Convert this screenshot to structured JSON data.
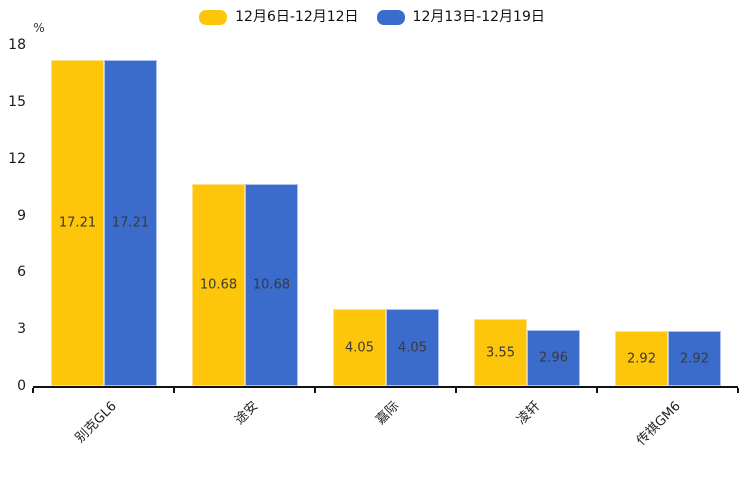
{
  "chart_data": {
    "type": "bar",
    "title": "",
    "xlabel": "",
    "ylabel": "%",
    "ylim": [
      0,
      18
    ],
    "yticks": [
      0,
      3,
      6,
      9,
      12,
      15,
      18
    ],
    "grid": false,
    "legend_position": "top-center",
    "categories": [
      "别克GL6",
      "途安",
      "嘉际",
      "凌轩",
      "传祺GM6"
    ],
    "series": [
      {
        "name": "12月6日-12月12日",
        "color": "#FDC60A",
        "border_color": "#FEE187",
        "values": [
          17.21,
          10.68,
          4.05,
          3.55,
          2.92
        ]
      },
      {
        "name": "12月13日-12月19日",
        "color": "#3B6BCB",
        "border_color": "#A9C3EE",
        "values": [
          17.21,
          10.68,
          4.05,
          2.96,
          2.92
        ]
      }
    ],
    "value_labels": true,
    "axis_color": "#121212",
    "tick_text_color": "#1a1a1a",
    "value_label_color": "#3a3a3a"
  }
}
